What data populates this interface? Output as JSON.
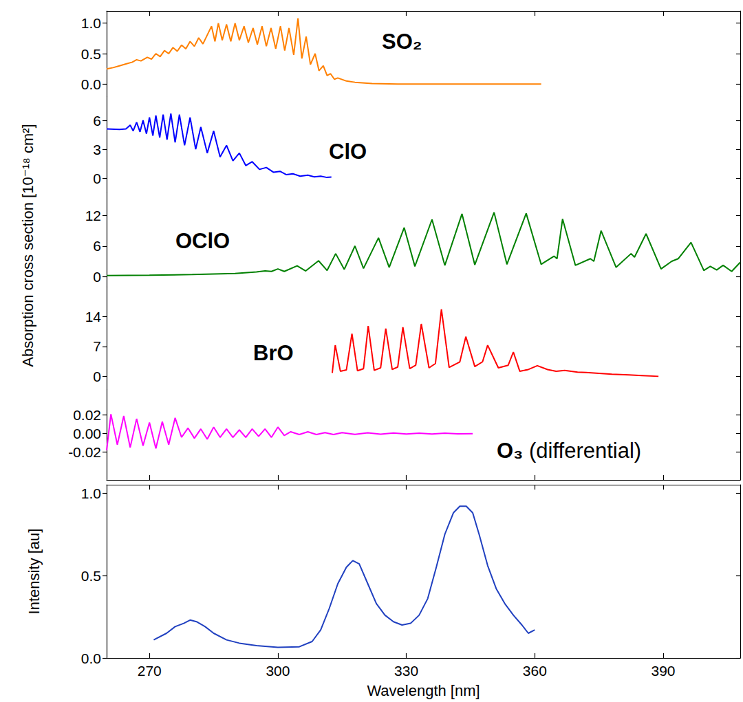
{
  "chart_data": {
    "type": "line",
    "ylabel": "Absorption cross section [10⁻¹⁸ cm²]",
    "xlabel": "Wavelength [nm]",
    "xlim": [
      260,
      408
    ],
    "xticks": [
      270,
      300,
      330,
      360,
      390
    ],
    "panels": [
      {
        "series": [
          {
            "name": "SO₂",
            "color": "#ff8000",
            "x": [
              260,
              261.5,
              263,
              264.5,
              266,
              267,
              268,
              269.5,
              270.5,
              271.5,
              272.5,
              273.5,
              274.5,
              275.5,
              276.5,
              277.5,
              278.5,
              279.5,
              280.5,
              281.5,
              282.5,
              284.5,
              285.3,
              286.1,
              287,
              288,
              289,
              290,
              291,
              292.1,
              293.1,
              294.2,
              295.2,
              296.3,
              297.3,
              298.4,
              299.5,
              300.6,
              301.6,
              302.6,
              303.7,
              304.7,
              305.6,
              306.6,
              307.6,
              308.7,
              309.6,
              310.6,
              311.5,
              312.3,
              313.2,
              314,
              316,
              318,
              322,
              328,
              340,
              350,
              361.5
            ],
            "values": [
              0.25,
              0.27,
              0.3,
              0.33,
              0.36,
              0.4,
              0.38,
              0.44,
              0.41,
              0.5,
              0.45,
              0.55,
              0.5,
              0.6,
              0.54,
              0.64,
              0.58,
              0.7,
              0.62,
              0.76,
              0.66,
              0.95,
              0.7,
              1.0,
              0.72,
              0.98,
              0.7,
              1.0,
              0.72,
              0.95,
              0.68,
              0.92,
              0.65,
              0.95,
              0.62,
              0.92,
              0.58,
              0.95,
              0.55,
              0.92,
              0.48,
              1.08,
              0.42,
              0.78,
              0.32,
              0.5,
              0.22,
              0.3,
              0.14,
              0.17,
              0.08,
              0.1,
              0.05,
              0.03,
              0.01,
              0.0,
              0.0,
              0.0,
              0.0
            ]
          }
        ],
        "ylim": [
          -0.2,
          1.2
        ],
        "yticks": [
          {
            "value": 0,
            "label": "0.0"
          },
          {
            "value": 0.5,
            "label": "0.5"
          },
          {
            "value": 1,
            "label": "1.0"
          }
        ],
        "tick_labels": "y"
      },
      {
        "series": [
          {
            "name": "ClO",
            "color": "#0000ff",
            "x": [
              260,
              263,
              264.5,
              265.5,
              266.2,
              267,
              267.8,
              268.5,
              269.3,
              270,
              270.8,
              271.5,
              272.4,
              273.2,
              274.1,
              275,
              276,
              277,
              278.2,
              279.5,
              280.8,
              282,
              283.5,
              285,
              286.5,
              288,
              289.5,
              291,
              292.5,
              294,
              295.7,
              297.3,
              299,
              300.5,
              302,
              303.5,
              305.2,
              307,
              308.5,
              310,
              311.3,
              312.5
            ],
            "values": [
              5.1,
              5.05,
              5.1,
              5.5,
              4.9,
              5.8,
              4.8,
              6.0,
              4.6,
              6.3,
              4.4,
              6.5,
              4.2,
              6.6,
              4.0,
              6.7,
              3.7,
              6.6,
              3.4,
              6.3,
              3.0,
              5.3,
              2.6,
              4.9,
              2.2,
              3.4,
              1.8,
              2.6,
              1.3,
              1.7,
              0.9,
              1.1,
              0.6,
              0.7,
              0.35,
              0.45,
              0.2,
              0.3,
              0.12,
              0.2,
              0.08,
              0.1
            ]
          }
        ],
        "ylim": [
          -1.5,
          8.5
        ],
        "yticks": [
          0,
          3,
          6
        ],
        "tick_labels": "y"
      },
      {
        "series": [
          {
            "name": "OClO",
            "color": "#008000",
            "x": [
              260,
              270,
              280,
              290,
              295,
              297,
              298.5,
              300,
              301.5,
              304.5,
              306.5,
              309.5,
              311.5,
              313.5,
              315.5,
              318,
              320,
              323.5,
              326,
              329.5,
              332,
              336,
              339,
              343,
              346,
              350.5,
              353.5,
              358,
              361.5,
              364.5,
              365.2,
              366.5,
              369.5,
              373,
              373.8,
              375.5,
              379,
              382.5,
              383.3,
              386,
              389.5,
              392,
              393.5,
              396.5,
              399.5,
              401,
              402.5,
              404,
              406,
              408
            ],
            "values": [
              0.2,
              0.25,
              0.4,
              0.6,
              0.9,
              1.1,
              1.0,
              1.5,
              1.0,
              2.1,
              1.1,
              3.1,
              1.2,
              4.5,
              1.4,
              6.0,
              1.6,
              7.6,
              1.8,
              9.6,
              2.0,
              11.2,
              2.2,
              12.3,
              2.3,
              12.6,
              2.4,
              12.4,
              2.4,
              4.0,
              3.5,
              11.3,
              2.2,
              3.5,
              3.0,
              9.0,
              1.8,
              4.5,
              3.8,
              8.4,
              1.5,
              3.0,
              3.5,
              6.7,
              1.2,
              2.0,
              1.3,
              2.2,
              1.0,
              2.8
            ]
          }
        ],
        "ylim": [
          -2,
          16.5
        ],
        "yticks": [
          0,
          6,
          12
        ],
        "tick_labels": "y"
      },
      {
        "series": [
          {
            "name": "BrO",
            "color": "#ff0000",
            "x": [
              312.7,
              313.4,
              314.6,
              316,
              317.3,
              318.6,
              320,
              321.1,
              322.5,
              324,
              325.2,
              326.7,
              328,
              329.2,
              330.8,
              332.2,
              333.5,
              335.3,
              336.8,
              338.2,
              340,
              342.5,
              343.9,
              346,
              347.8,
              349,
              351.5,
              353.8,
              355,
              356.5,
              358.5,
              360.6,
              363,
              365,
              367,
              370,
              372,
              375,
              378,
              382,
              385,
              388.9
            ],
            "values": [
              0.8,
              7.3,
              1.2,
              1.5,
              10.0,
              1.3,
              1.8,
              11.8,
              1.4,
              2.0,
              11.2,
              1.6,
              2.2,
              11.5,
              1.8,
              2.6,
              12.3,
              2.0,
              3.0,
              15.7,
              2.1,
              3.4,
              9.3,
              2.3,
              3.4,
              7.3,
              2.0,
              2.6,
              5.7,
              1.2,
              1.6,
              2.5,
              1.6,
              1.2,
              1.4,
              1.0,
              0.9,
              0.7,
              0.5,
              0.35,
              0.2,
              0.0
            ]
          }
        ],
        "ylim": [
          -3,
          21
        ],
        "yticks": [
          0,
          7,
          14
        ],
        "tick_labels": "y"
      },
      {
        "series": [
          {
            "name": "O₃ (differential)",
            "color": "#ff00ff",
            "x": [
              260,
              261,
              262.5,
              264,
              265.5,
              267,
              268.5,
              270,
              271.5,
              273,
              274.5,
              276,
              277.5,
              279,
              280.5,
              282,
              283.5,
              285,
              286.5,
              288,
              289.5,
              291,
              292.5,
              294,
              295.5,
              297,
              298.5,
              300,
              301.5,
              303,
              305,
              307,
              309,
              311,
              313,
              315,
              318,
              321,
              324,
              327,
              330,
              333,
              336,
              339,
              342,
              345.5
            ],
            "values": [
              -0.018,
              0.021,
              -0.012,
              0.019,
              -0.015,
              0.016,
              -0.013,
              0.012,
              -0.016,
              0.013,
              -0.012,
              0.017,
              -0.004,
              0.006,
              -0.005,
              0.005,
              -0.006,
              0.007,
              -0.004,
              0.005,
              -0.004,
              0.004,
              -0.004,
              0.005,
              -0.003,
              0.005,
              -0.004,
              0.007,
              -0.002,
              0.002,
              -0.001,
              0.002,
              -0.001,
              0.001,
              -0.001,
              0.001,
              -0.0008,
              0.0008,
              -0.0006,
              0.0006,
              -0.0005,
              0.0005,
              -0.0004,
              0.0004,
              -0.0003,
              0
            ]
          }
        ],
        "ylim": [
          -0.05,
          0.048
        ],
        "yticks": [
          {
            "value": -0.02,
            "label": "-0.02"
          },
          {
            "value": 0,
            "label": "0.00"
          },
          {
            "value": 0.02,
            "label": "0.02"
          }
        ],
        "tick_labels": "y"
      },
      {
        "ylabel": "Intensity [au]",
        "series": [
          {
            "color": "#2040c0",
            "x": [
              271,
              274,
              276,
              278,
              279.5,
              281,
              283,
              285,
              288,
              291,
              295,
              300,
              305,
              308,
              310,
              312,
              314,
              316,
              317.5,
              319,
              321,
              323,
              325,
              327,
              329,
              331,
              333,
              335,
              337,
              339,
              341,
              342.5,
              344,
              345.5,
              347,
              349,
              351,
              353,
              355,
              357,
              358.5,
              360
            ],
            "values": [
              0.11,
              0.15,
              0.19,
              0.21,
              0.23,
              0.22,
              0.19,
              0.15,
              0.11,
              0.09,
              0.075,
              0.065,
              0.068,
              0.1,
              0.17,
              0.3,
              0.45,
              0.55,
              0.59,
              0.57,
              0.45,
              0.33,
              0.26,
              0.22,
              0.2,
              0.21,
              0.26,
              0.36,
              0.55,
              0.75,
              0.88,
              0.92,
              0.92,
              0.88,
              0.75,
              0.56,
              0.42,
              0.33,
              0.26,
              0.2,
              0.15,
              0.17
            ]
          }
        ],
        "ylim": [
          0,
          1.05
        ],
        "yticks": [
          {
            "value": 0,
            "label": "0.0"
          },
          {
            "value": 0.5,
            "label": "0.5"
          },
          {
            "value": 1,
            "label": "1.0"
          }
        ]
      }
    ]
  }
}
